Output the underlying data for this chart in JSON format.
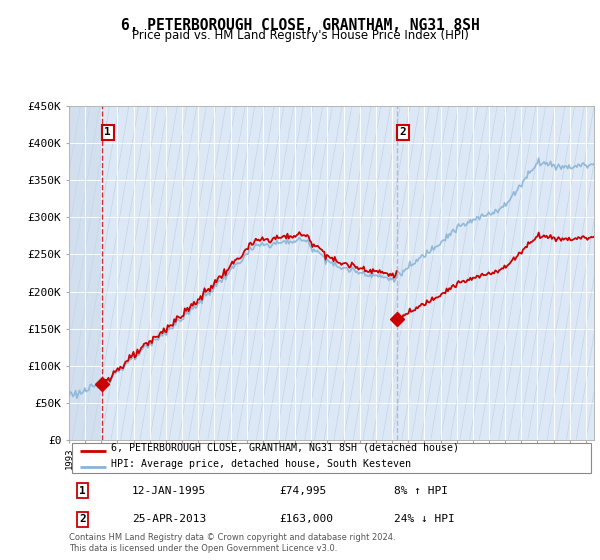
{
  "title": "6, PETERBOROUGH CLOSE, GRANTHAM, NG31 8SH",
  "subtitle": "Price paid vs. HM Land Registry's House Price Index (HPI)",
  "sale1_date": "12-JAN-1995",
  "sale1_price": 74995,
  "sale1_hpi": "8% ↑ HPI",
  "sale2_date": "25-APR-2013",
  "sale2_price": 163000,
  "sale2_hpi": "24% ↓ HPI",
  "legend_line1": "6, PETERBOROUGH CLOSE, GRANTHAM, NG31 8SH (detached house)",
  "legend_line2": "HPI: Average price, detached house, South Kesteven",
  "footer": "Contains HM Land Registry data © Crown copyright and database right 2024.\nThis data is licensed under the Open Government Licence v3.0.",
  "ylabel_ticks": [
    "£0",
    "£50K",
    "£100K",
    "£150K",
    "£200K",
    "£250K",
    "£300K",
    "£350K",
    "£400K",
    "£450K"
  ],
  "ytick_vals": [
    0,
    50000,
    100000,
    150000,
    200000,
    250000,
    300000,
    350000,
    400000,
    450000
  ],
  "sale1_x": 1995.04,
  "sale2_x": 2013.32,
  "hpi_color": "#8ab4d4",
  "price_color": "#cc0000",
  "marker_color": "#cc0000",
  "vline1_color": "#cc0000",
  "vline2_color": "#aaaacc",
  "plot_bg": "#dce8f5",
  "hatch_bg": "#c8d8ea",
  "grid_color": "#ffffff",
  "xmin": 1993,
  "xmax": 2025.5,
  "ymin": 0,
  "ymax": 450000
}
